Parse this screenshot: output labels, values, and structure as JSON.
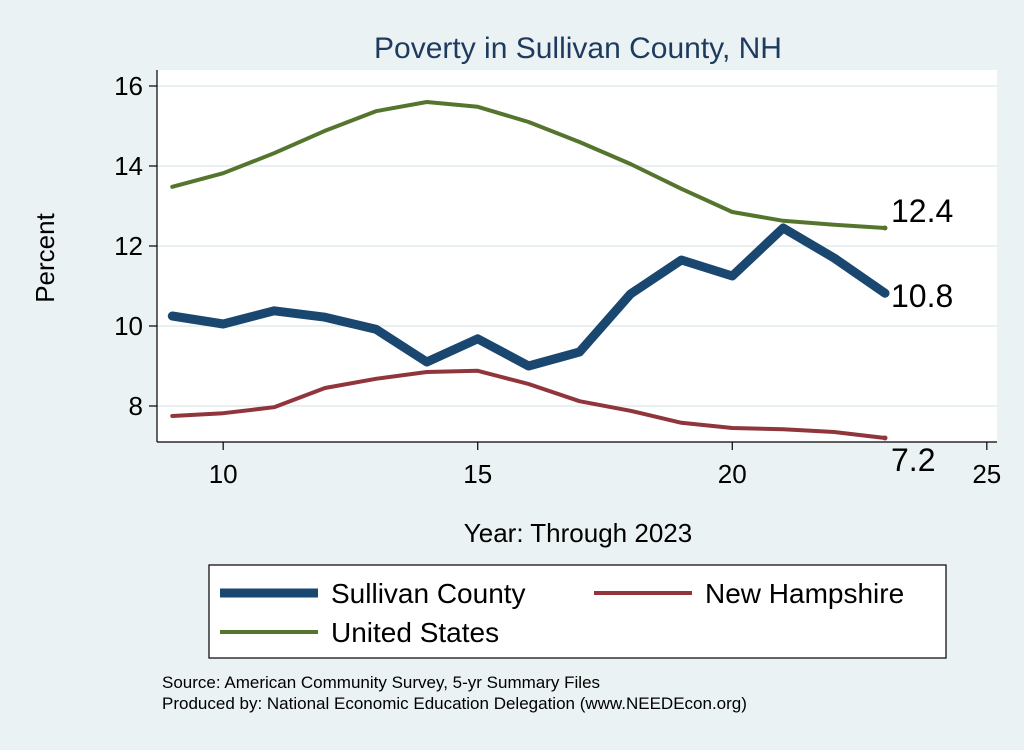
{
  "chart_data": {
    "type": "line",
    "title": "Poverty in Sullivan County, NH",
    "xlabel": "Year: Through 2023",
    "ylabel": "Percent",
    "xlim": [
      8.7,
      25.2
    ],
    "ylim": [
      7.1,
      16.4
    ],
    "xticks": [
      "10",
      "15",
      "20",
      "25"
    ],
    "yticks": [
      "8",
      "10",
      "12",
      "14",
      "16"
    ],
    "grid": true,
    "x": [
      9,
      10,
      11,
      12,
      13,
      14,
      15,
      16,
      17,
      18,
      19,
      20,
      21,
      22,
      23
    ],
    "series": [
      {
        "name": "Sullivan County",
        "color": "#1a476f",
        "values": [
          10.25,
          10.05,
          10.38,
          10.22,
          9.92,
          9.1,
          9.68,
          9.0,
          9.35,
          10.8,
          11.65,
          11.25,
          12.45,
          11.7,
          10.82
        ],
        "end_label": "10.8"
      },
      {
        "name": "New Hampshire",
        "color": "#90353b",
        "values": [
          7.75,
          7.82,
          7.97,
          8.45,
          8.68,
          8.85,
          8.88,
          8.55,
          8.12,
          7.88,
          7.58,
          7.45,
          7.42,
          7.35,
          7.2
        ],
        "end_label": "7.2"
      },
      {
        "name": "United States",
        "color": "#55752f",
        "values": [
          13.48,
          13.82,
          14.32,
          14.88,
          15.37,
          15.6,
          15.48,
          15.1,
          14.6,
          14.05,
          13.43,
          12.85,
          12.63,
          12.53,
          12.45
        ],
        "end_label": "12.4"
      }
    ],
    "legend": {
      "placement": "bottom",
      "entries": [
        "Sullivan County",
        "New Hampshire",
        "United States"
      ]
    }
  },
  "source_line": "Source: American Community Survey, 5-yr Summary Files",
  "produced_line": "Produced by: National Economic Education Delegation (www.NEEDEcon.org)",
  "colors": {
    "background": "#eaf2f3",
    "plot_background": "#ffffff",
    "grid": "#e2ebec",
    "title": "#1e3a5f"
  }
}
